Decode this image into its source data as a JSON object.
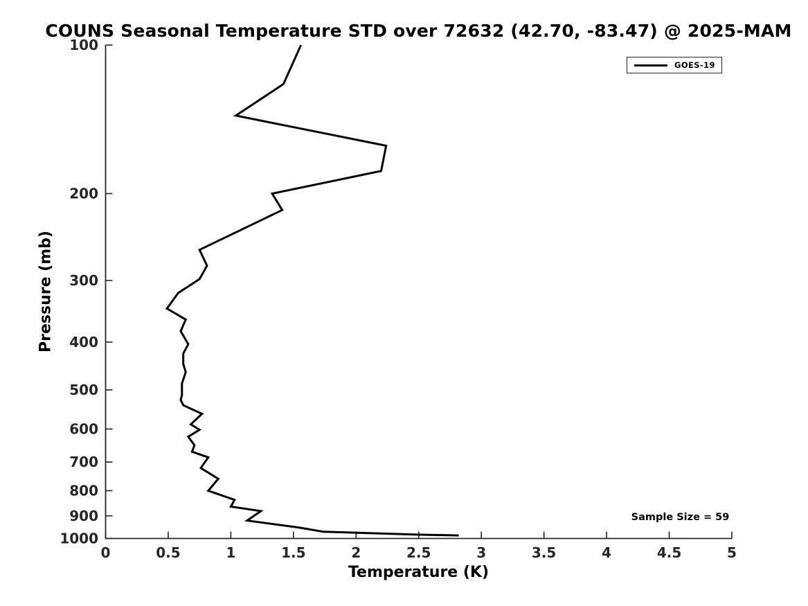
{
  "colors": {
    "background": "#ffffff",
    "line": "#000000",
    "axis": "#262626",
    "text": "#000000"
  },
  "annotations": {
    "sample_size": "Sample Size = 59"
  },
  "legend": {
    "position": "top-right",
    "entries": [
      {
        "label": "GOES-19",
        "color": "#000000",
        "style": "solid-line"
      }
    ]
  },
  "chart_data": {
    "type": "line",
    "title": "COUNS Seasonal Temperature STD over 72632 (42.70, -83.47) @ 2025-MAM",
    "xlabel": "Temperature (K)",
    "ylabel": "Pressure (mb)",
    "xlim": [
      0,
      5
    ],
    "xticks": [
      0,
      0.5,
      1,
      1.5,
      2,
      2.5,
      3,
      3.5,
      4,
      4.5,
      5
    ],
    "xtick_labels": [
      "0",
      "0.5",
      "1",
      "1.5",
      "2",
      "2.5",
      "3",
      "3.5",
      "4",
      "4.5",
      "5"
    ],
    "ylim": [
      100,
      1000
    ],
    "yscale": "log",
    "y_axis_direction": "reversed (pressure increases downward)",
    "yticks": [
      100,
      200,
      300,
      400,
      500,
      600,
      700,
      800,
      900,
      1000
    ],
    "ytick_labels": [
      "100",
      "200",
      "300",
      "400",
      "500",
      "600",
      "700",
      "800",
      "900",
      "1000"
    ],
    "grid": false,
    "box": "left-and-bottom-spines-only",
    "tick_direction": "in",
    "legend_position": "top-right",
    "series": [
      {
        "name": "GOES-19",
        "color": "#000000",
        "pressure_mb": [
          100,
          120,
          139,
          160,
          180,
          200,
          216,
          260,
          280,
          298,
          318,
          342,
          360,
          380,
          404,
          422,
          443,
          460,
          485,
          512,
          524,
          537,
          559,
          587,
          602,
          622,
          647,
          667,
          685,
          720,
          757,
          800,
          835,
          862,
          880,
          920,
          950,
          969,
          975,
          982,
          986
        ],
        "temperature_std_K": [
          1.56,
          1.42,
          1.04,
          2.24,
          2.2,
          1.33,
          1.41,
          0.75,
          0.81,
          0.75,
          0.58,
          0.49,
          0.64,
          0.6,
          0.66,
          0.62,
          0.62,
          0.64,
          0.61,
          0.61,
          0.6,
          0.62,
          0.77,
          0.68,
          0.75,
          0.66,
          0.71,
          0.69,
          0.82,
          0.76,
          0.9,
          0.82,
          1.03,
          1.0,
          1.24,
          1.13,
          1.54,
          1.74,
          2.1,
          2.48,
          2.82
        ]
      }
    ]
  }
}
